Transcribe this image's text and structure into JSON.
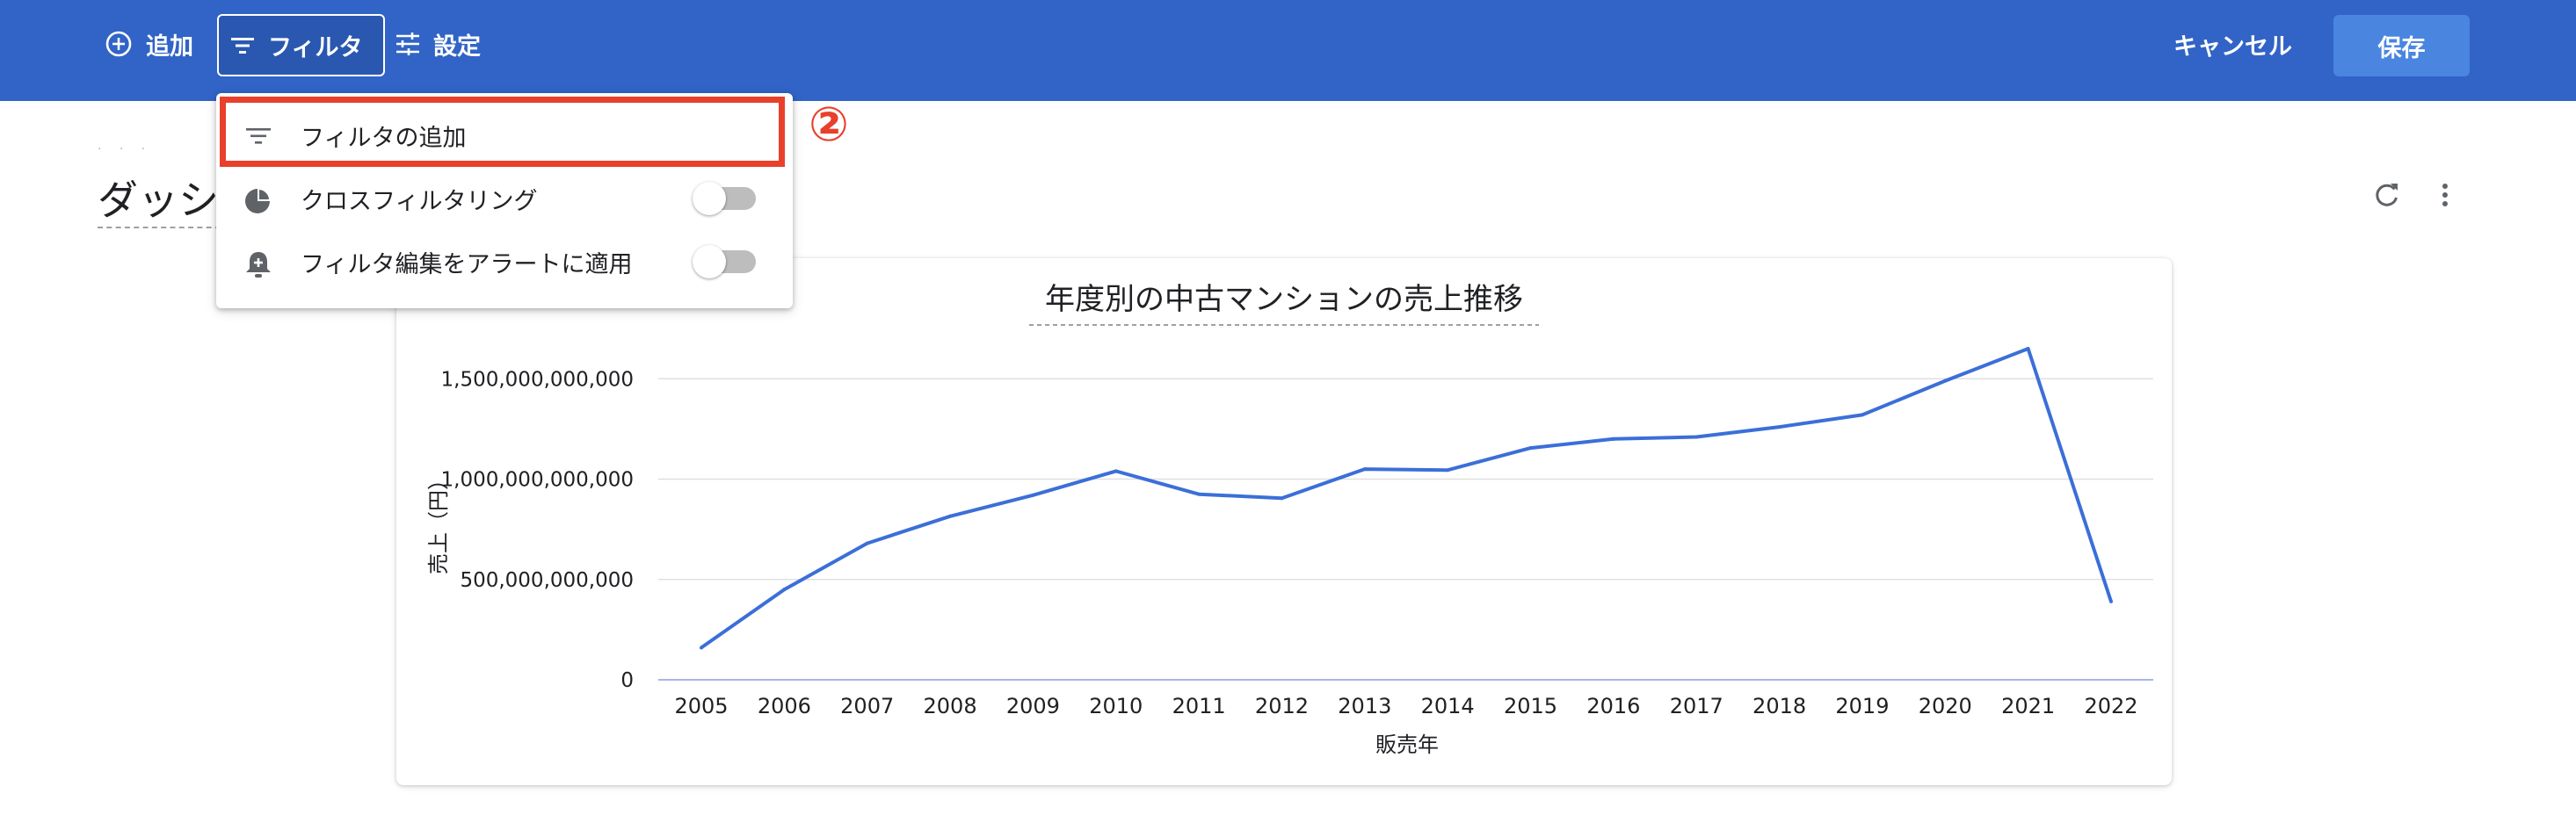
{
  "toolbar": {
    "add_label": "追加",
    "filter_label": "フィルタ",
    "settings_label": "設定",
    "cancel_label": "キャンセル",
    "save_label": "保存"
  },
  "page": {
    "title": "ダッシ"
  },
  "dropdown": {
    "items": [
      {
        "label": "フィルタの追加",
        "icon": "filter-list-icon"
      },
      {
        "label": "クロスフィルタリング",
        "icon": "pie-chart-icon",
        "toggle_on": false
      },
      {
        "label": "フィルタ編集をアラートに適用",
        "icon": "add-alert-icon",
        "toggle_on": false
      }
    ]
  },
  "annotation": {
    "step": "②",
    "color": "#e8402b"
  },
  "colors": {
    "topbar": "#3164c6",
    "save_button": "#4a86e0",
    "line": "#3b6fd8"
  },
  "chart_data": {
    "type": "line",
    "title": "年度別の中古マンションの売上推移",
    "xlabel": "販売年",
    "ylabel": "売上（円）",
    "categories": [
      "2005",
      "2006",
      "2007",
      "2008",
      "2009",
      "2010",
      "2011",
      "2012",
      "2013",
      "2014",
      "2015",
      "2016",
      "2017",
      "2018",
      "2019",
      "2020",
      "2021",
      "2022"
    ],
    "series": [
      {
        "values": [
          160000000000,
          450000000000,
          680000000000,
          815000000000,
          920000000000,
          1040000000000,
          925000000000,
          905000000000,
          1050000000000,
          1045000000000,
          1155000000000,
          1200000000000,
          1210000000000,
          1260000000000,
          1320000000000,
          1490000000000,
          1650000000000,
          390000000000
        ]
      }
    ],
    "yticks": [
      0,
      500000000000,
      1000000000000,
      1500000000000
    ],
    "ytick_labels": [
      "0",
      "500,000,000,000",
      "1,000,000,000,000",
      "1,500,000,000,000"
    ],
    "ylim": [
      0,
      1650000000000
    ],
    "grid": true
  }
}
